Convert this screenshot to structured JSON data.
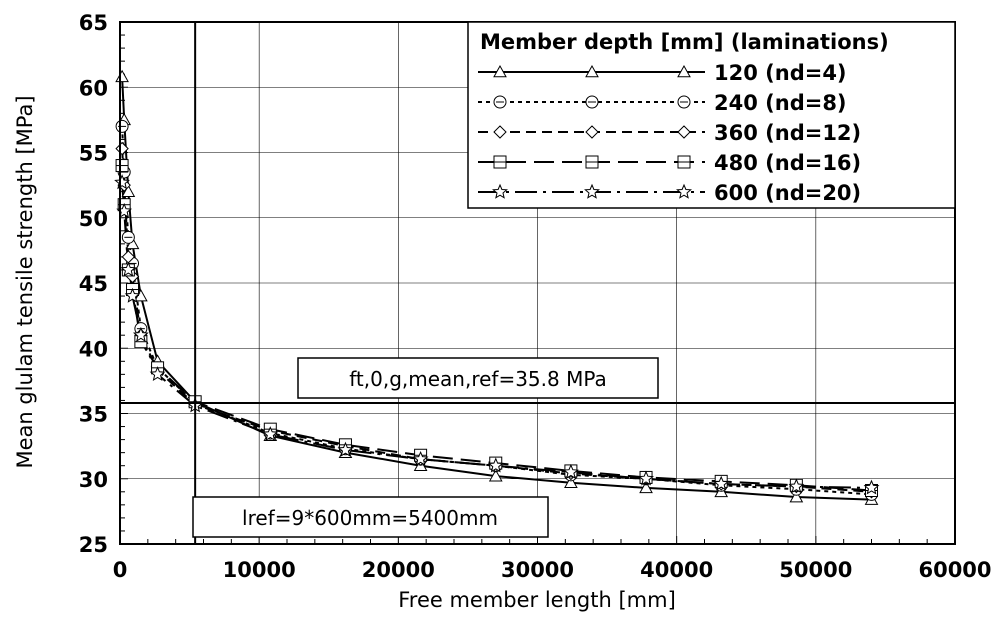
{
  "chart_data": {
    "type": "line",
    "xlabel": "Free member length [mm]",
    "ylabel": "Mean glulam tensile strength [MPa]",
    "xlim": [
      0,
      60000
    ],
    "ylim": [
      25,
      65
    ],
    "xticks": [
      0,
      10000,
      20000,
      30000,
      40000,
      50000,
      60000
    ],
    "yticks": [
      25,
      30,
      35,
      40,
      45,
      50,
      55,
      60,
      65
    ],
    "x_tick_labels": [
      "0",
      "10000",
      "20000",
      "30000",
      "40000",
      "50000",
      "60000"
    ],
    "y_tick_labels": [
      "25",
      "30",
      "35",
      "40",
      "45",
      "50",
      "55",
      "60",
      "65"
    ],
    "grid": true,
    "legend": {
      "title": "Member depth [mm] (laminations)",
      "position": "top-right"
    },
    "series": [
      {
        "name": "120 (nd=4)",
        "marker": "triangle",
        "dash": "solid",
        "x": [
          150,
          300,
          600,
          900,
          1500,
          2700,
          5400,
          10800,
          16200,
          21600,
          27000,
          32400,
          37800,
          43200,
          48600,
          54000
        ],
        "y": [
          60.8,
          57.5,
          52.0,
          48.0,
          44.0,
          39.0,
          35.9,
          33.3,
          32.0,
          31.0,
          30.2,
          29.7,
          29.3,
          29.0,
          28.6,
          28.4
        ]
      },
      {
        "name": "240 (nd=8)",
        "marker": "circle",
        "dash": "dotted",
        "x": [
          150,
          300,
          600,
          900,
          1500,
          2700,
          5400,
          10800,
          16200,
          21600,
          27000,
          32400,
          37800,
          43200,
          48600,
          54000
        ],
        "y": [
          57.0,
          53.5,
          48.5,
          46.5,
          41.5,
          38.5,
          35.8,
          33.5,
          32.3,
          31.5,
          31.0,
          30.3,
          30.0,
          29.5,
          29.2,
          28.8
        ]
      },
      {
        "name": "360 (nd=12)",
        "marker": "diamond",
        "dash": "dashed",
        "x": [
          150,
          300,
          600,
          900,
          1500,
          2700,
          5400,
          10800,
          16200,
          21600,
          27000,
          32400,
          37800,
          43200,
          48600,
          54000
        ],
        "y": [
          55.3,
          52.5,
          47.0,
          45.5,
          41.0,
          38.3,
          35.7,
          33.7,
          32.5,
          31.5,
          31.0,
          30.4,
          30.0,
          29.6,
          29.4,
          29.0
        ]
      },
      {
        "name": "480 (nd=16)",
        "marker": "square",
        "dash": "long-dashed",
        "x": [
          150,
          300,
          600,
          900,
          1500,
          2700,
          5400,
          10800,
          16200,
          21600,
          27000,
          32400,
          37800,
          43200,
          48600,
          54000
        ],
        "y": [
          54.0,
          51.0,
          46.0,
          44.5,
          40.5,
          38.5,
          35.9,
          33.8,
          32.6,
          31.8,
          31.2,
          30.6,
          30.1,
          29.8,
          29.5,
          29.1
        ]
      },
      {
        "name": "600 (nd=20)",
        "marker": "star",
        "dash": "dash-dot",
        "x": [
          150,
          300,
          600,
          900,
          1500,
          2700,
          5400,
          10800,
          16200,
          21600,
          27000,
          32400,
          37800,
          43200,
          48600,
          54000
        ],
        "y": [
          52.7,
          50.5,
          46.0,
          44.0,
          41.0,
          38.0,
          35.6,
          33.4,
          32.2,
          31.5,
          31.0,
          30.5,
          30.0,
          29.6,
          29.4,
          29.3
        ]
      }
    ],
    "reference_lines": [
      {
        "axis": "y",
        "value": 35.8,
        "label": "ft,0,g,mean,ref=35.8 MPa"
      },
      {
        "axis": "x",
        "value": 5400,
        "label": "lref=9*600mm=5400mm"
      }
    ]
  }
}
